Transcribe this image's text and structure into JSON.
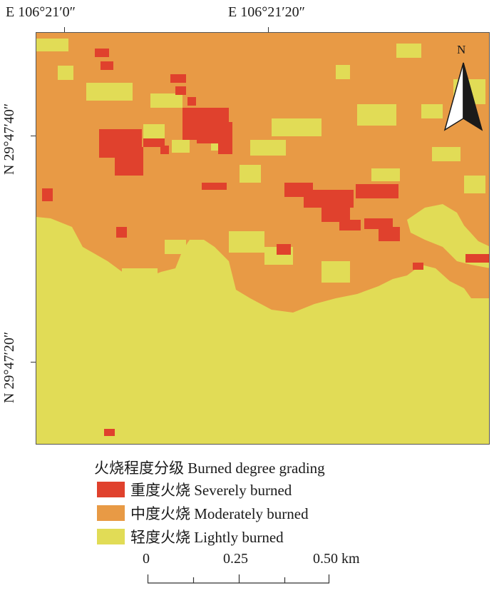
{
  "coordinates": {
    "lon_left": "E 106°21′0″",
    "lon_right": "E 106°21′20″",
    "lat_top": "N 29°47′40″",
    "lat_bottom": "N 29°47′20″"
  },
  "north_arrow": {
    "label": "N",
    "icon": "north-arrow-icon"
  },
  "legend": {
    "title": "火烧程度分级 Burned degree grading",
    "items": [
      {
        "label": "重度火烧 Severely burned",
        "color": "#e0412d"
      },
      {
        "label": "中度火烧 Moderately burned",
        "color": "#e89a45"
      },
      {
        "label": "轻度火烧 Lightly burned",
        "color": "#e1dc56"
      }
    ]
  },
  "scale_bar": {
    "labels": [
      "0",
      "0.25",
      "0.50 km"
    ]
  }
}
